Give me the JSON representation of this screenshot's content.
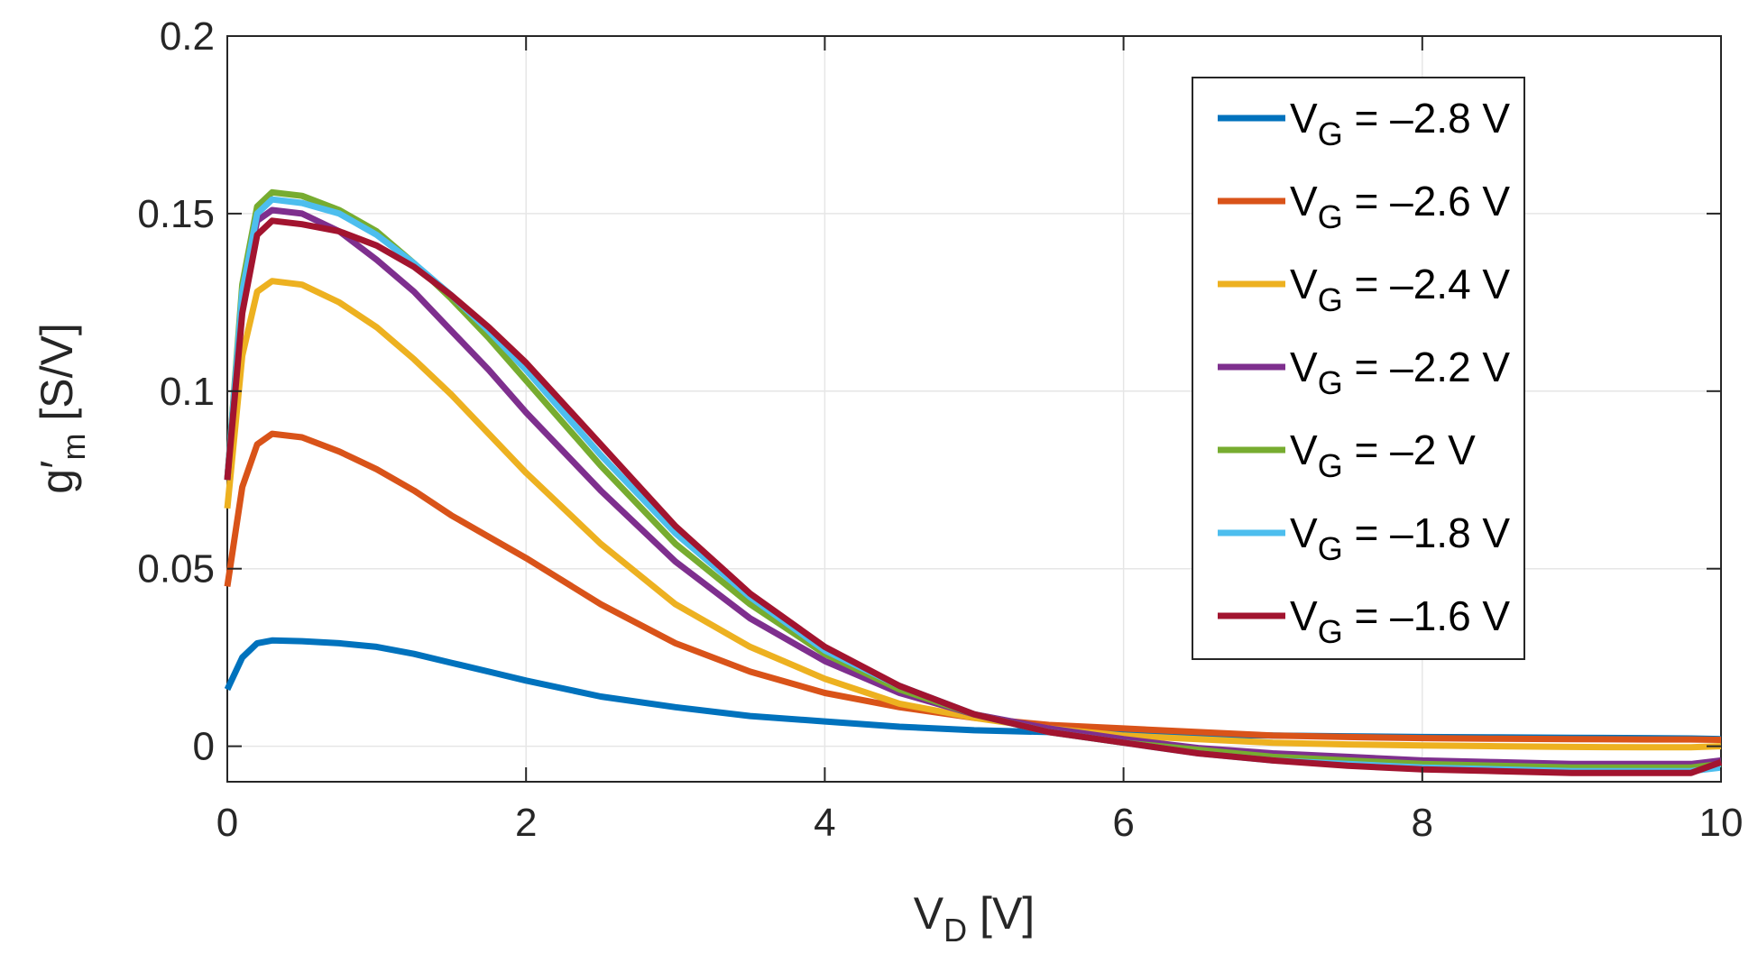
{
  "chart_data": {
    "type": "line",
    "title": "",
    "xlabel": {
      "main": "V",
      "sub": "D",
      "unit": " [V]"
    },
    "ylabel": {
      "main": "g′",
      "sub": "m",
      "unit": " [S/V]"
    },
    "xlim": [
      0,
      10
    ],
    "ylim": [
      -0.01,
      0.2
    ],
    "xticks": [
      0,
      2,
      4,
      6,
      8,
      10
    ],
    "xtick_labels": [
      "0",
      "2",
      "4",
      "6",
      "8",
      "10"
    ],
    "yticks": [
      0,
      0.05,
      0.1,
      0.15,
      0.2
    ],
    "ytick_labels": [
      "0",
      "0.05",
      "0.1",
      "0.15",
      "0.2"
    ],
    "grid": true,
    "legend_position": "top-right",
    "x": [
      0,
      0.1,
      0.2,
      0.3,
      0.5,
      0.75,
      1,
      1.25,
      1.5,
      1.75,
      2,
      2.5,
      3,
      3.5,
      4,
      4.5,
      5,
      5.5,
      6,
      6.5,
      7,
      7.5,
      8,
      8.5,
      9,
      9.5,
      9.8,
      10
    ],
    "series": [
      {
        "name": "V_G = –2.8 V",
        "label_main": "V",
        "label_sub": "G",
        "label_rest": " = –2.8 V",
        "color": "#0072BD",
        "values": [
          0.016,
          0.025,
          0.029,
          0.0298,
          0.0296,
          0.029,
          0.028,
          0.026,
          0.0235,
          0.021,
          0.0185,
          0.014,
          0.011,
          0.0085,
          0.007,
          0.0055,
          0.0045,
          0.004,
          0.0035,
          0.0032,
          0.003,
          0.0028,
          0.0026,
          0.0025,
          0.0024,
          0.0023,
          0.0022,
          0.002
        ]
      },
      {
        "name": "V_G = –2.6 V",
        "label_main": "V",
        "label_sub": "G",
        "label_rest": " = –2.6 V",
        "color": "#D95319",
        "values": [
          0.045,
          0.073,
          0.085,
          0.088,
          0.087,
          0.083,
          0.078,
          0.072,
          0.065,
          0.059,
          0.053,
          0.04,
          0.029,
          0.021,
          0.015,
          0.011,
          0.008,
          0.006,
          0.005,
          0.004,
          0.003,
          0.0026,
          0.0023,
          0.0021,
          0.002,
          0.0019,
          0.0019,
          0.0018
        ]
      },
      {
        "name": "V_G = –2.4 V",
        "label_main": "V",
        "label_sub": "G",
        "label_rest": " = –2.4 V",
        "color": "#EDB120",
        "values": [
          0.067,
          0.11,
          0.128,
          0.131,
          0.13,
          0.125,
          0.118,
          0.109,
          0.099,
          0.088,
          0.077,
          0.057,
          0.04,
          0.028,
          0.019,
          0.012,
          0.008,
          0.005,
          0.003,
          0.002,
          0.001,
          0.0005,
          0.0002,
          0,
          -0.0002,
          -0.0003,
          -0.0003,
          0
        ]
      },
      {
        "name": "V_G = –2.2 V",
        "label_main": "V",
        "label_sub": "G",
        "label_rest": " = –2.2 V",
        "color": "#7E2F8E",
        "values": [
          0.075,
          0.128,
          0.148,
          0.151,
          0.15,
          0.145,
          0.137,
          0.128,
          0.117,
          0.106,
          0.094,
          0.072,
          0.052,
          0.036,
          0.024,
          0.015,
          0.009,
          0.005,
          0.002,
          -0.0005,
          -0.002,
          -0.003,
          -0.004,
          -0.0045,
          -0.005,
          -0.005,
          -0.005,
          -0.004
        ]
      },
      {
        "name": "V_G = –2 V",
        "label_main": "V",
        "label_sub": "G",
        "label_rest": " = –2 V",
        "color": "#77AC30",
        "values": [
          0.075,
          0.13,
          0.152,
          0.156,
          0.155,
          0.151,
          0.145,
          0.136,
          0.126,
          0.115,
          0.103,
          0.079,
          0.057,
          0.04,
          0.026,
          0.016,
          0.009,
          0.004,
          0.001,
          -0.001,
          -0.003,
          -0.004,
          -0.005,
          -0.0055,
          -0.006,
          -0.006,
          -0.006,
          -0.005
        ]
      },
      {
        "name": "V_G = –1.8 V",
        "label_main": "V",
        "label_sub": "G",
        "label_rest": " = –1.8 V",
        "color": "#4DBEEE",
        "values": [
          0.075,
          0.128,
          0.15,
          0.154,
          0.153,
          0.15,
          0.144,
          0.136,
          0.127,
          0.117,
          0.106,
          0.082,
          0.06,
          0.042,
          0.027,
          0.017,
          0.009,
          0.004,
          0.001,
          -0.002,
          -0.004,
          -0.005,
          -0.006,
          -0.0065,
          -0.007,
          -0.007,
          -0.007,
          -0.006
        ]
      },
      {
        "name": "V_G = –1.6 V",
        "label_main": "V",
        "label_sub": "G",
        "label_rest": " = –1.6 V",
        "color": "#A2142F",
        "values": [
          0.075,
          0.122,
          0.144,
          0.148,
          0.147,
          0.145,
          0.141,
          0.135,
          0.127,
          0.118,
          0.108,
          0.085,
          0.062,
          0.043,
          0.028,
          0.017,
          0.009,
          0.004,
          0.001,
          -0.002,
          -0.004,
          -0.0055,
          -0.0065,
          -0.007,
          -0.0075,
          -0.0075,
          -0.0075,
          -0.0045
        ]
      }
    ]
  }
}
